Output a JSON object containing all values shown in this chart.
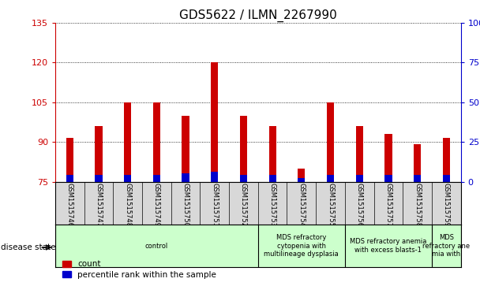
{
  "title": "GDS5622 / ILMN_2267990",
  "samples": [
    "GSM1515746",
    "GSM1515747",
    "GSM1515748",
    "GSM1515749",
    "GSM1515750",
    "GSM1515751",
    "GSM1515752",
    "GSM1515753",
    "GSM1515754",
    "GSM1515755",
    "GSM1515756",
    "GSM1515757",
    "GSM1515758",
    "GSM1515759"
  ],
  "count_values": [
    91.5,
    96,
    105,
    105,
    100,
    120,
    100,
    96,
    80,
    105,
    96,
    93,
    89,
    91.5
  ],
  "percentile_values": [
    4,
    4,
    4,
    4,
    5,
    6,
    4,
    4,
    2,
    4,
    4,
    4,
    4,
    4
  ],
  "ylim_left": [
    75,
    135
  ],
  "ylim_right": [
    0,
    100
  ],
  "yticks_left": [
    75,
    90,
    105,
    120,
    135
  ],
  "yticks_right": [
    0,
    25,
    50,
    75,
    100
  ],
  "bar_color_count": "#cc0000",
  "bar_color_pct": "#0000cc",
  "bar_width": 0.25,
  "grid_color": "#000000",
  "disease_groups": [
    {
      "label": "control",
      "start": 0,
      "end": 7
    },
    {
      "label": "MDS refractory\ncytopenia with\nmultilineage dysplasia",
      "start": 7,
      "end": 10
    },
    {
      "label": "MDS refractory anemia\nwith excess blasts-1",
      "start": 10,
      "end": 13
    },
    {
      "label": "MDS\nrefractory ane\nmia with",
      "start": 13,
      "end": 14
    }
  ],
  "disease_bg_color": "#ccffcc",
  "xlabel_area_bg": "#d8d8d8",
  "legend_count_label": "count",
  "legend_pct_label": "percentile rank within the sample",
  "title_fontsize": 11,
  "tick_fontsize": 8,
  "left_tick_color": "#cc0000",
  "right_tick_color": "#0000cc",
  "bg_color": "#ffffff"
}
